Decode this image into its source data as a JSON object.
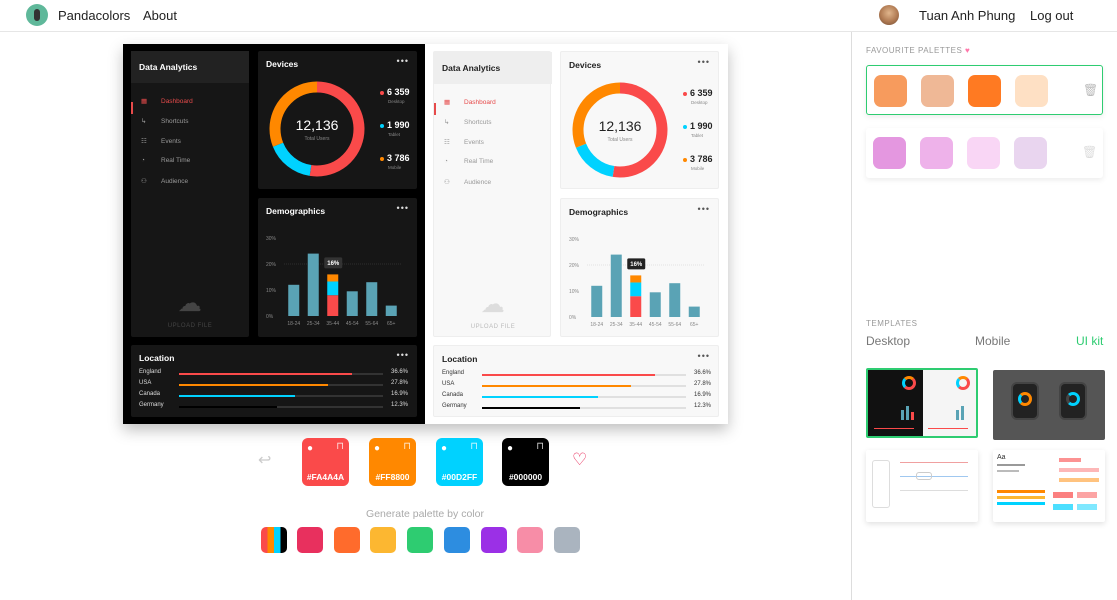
{
  "nav": {
    "brand": "Pandacolors",
    "about": "About",
    "user": "Tuan Anh Phung",
    "logout": "Log out"
  },
  "mockup": {
    "title": "Data Analytics",
    "menu": [
      "Dashboard",
      "Shortcuts",
      "Events",
      "Real Time",
      "Audience"
    ],
    "upload": "UPLOAD FILE",
    "devices": {
      "title": "Devices",
      "total": "12,136",
      "total_label": "Total Users",
      "desktop": {
        "value": "6 359",
        "label": "Desktop"
      },
      "tablet": {
        "value": "1 990",
        "label": "Tablet"
      },
      "mobile": {
        "value": "3 786",
        "label": "Mobile"
      }
    },
    "demographics": {
      "title": "Demographics",
      "yticks": [
        "30%",
        "20%",
        "10%",
        "0%"
      ],
      "categories": [
        "18-24",
        "25-34",
        "35-44",
        "45-54",
        "55-64",
        "65+"
      ],
      "tooltip": "16%"
    },
    "location": {
      "title": "Location",
      "rows": [
        {
          "name": "England",
          "value": "36.6%",
          "pct": 0.85,
          "color": "#FA4A4A"
        },
        {
          "name": "USA",
          "value": "27.8%",
          "pct": 0.73,
          "color": "#FF8800"
        },
        {
          "name": "Canada",
          "value": "16.9%",
          "pct": 0.57,
          "color": "#00D2FF"
        },
        {
          "name": "Germany",
          "value": "12.3%",
          "pct": 0.48,
          "color": "#000000"
        }
      ]
    }
  },
  "chart_data": {
    "type": "bar",
    "categories": [
      "18-24",
      "25-34",
      "35-44",
      "45-54",
      "55-64",
      "65+"
    ],
    "values": [
      12,
      24,
      16,
      9.5,
      13,
      4
    ],
    "ylim": [
      0,
      30
    ]
  },
  "palette": {
    "colors": [
      {
        "hex": "#FA4A4A"
      },
      {
        "hex": "#FF8800"
      },
      {
        "hex": "#00D2FF"
      },
      {
        "hex": "#000000"
      }
    ],
    "generate_label": "Generate palette by color",
    "generate_colors": [
      "#E8305E",
      "#FF6B2C",
      "#FCB731",
      "#2ECC71",
      "#2D8DE0",
      "#9B30E6",
      "#F78DA7",
      "#AAB4BF"
    ]
  },
  "sidebar": {
    "favourites_label": "FAVOURITE PALETTES",
    "favourites": [
      [
        "#F79B5D",
        "#EFB896",
        "#FF7A22",
        "#FEE0C4"
      ],
      [
        "#E497E0",
        "#EEB2EA",
        "#F9D6F5",
        "#E9D5EF"
      ]
    ],
    "templates_label": "TEMPLATES",
    "tabs": [
      "Desktop",
      "Mobile",
      "UI kit"
    ]
  },
  "accent": "#2ECC71"
}
